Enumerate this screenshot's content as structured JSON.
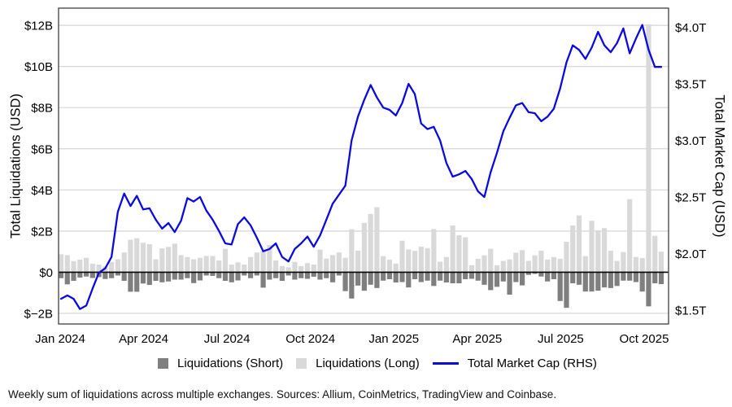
{
  "caption": "Weekly sum of liquidations across multiple exchanges. Sources: Allium, CoinMetrics, TradingView and Coinbase.",
  "colors": {
    "short_bar": "#7f7f7f",
    "long_bar": "#d9d9d9",
    "line": "#0b0bdb",
    "grid": "#d6d6d6",
    "frame": "#4d4d4d",
    "zero_line": "#000000",
    "text": "#000000"
  },
  "chart_data": {
    "type": "bar",
    "note": "weekly combo chart: two bar series (left axis, $B) + one line series (right axis, $T)",
    "x_unit": "weeks from Jan 2024 to Oct 2025",
    "x_axis": {
      "tick_labels": [
        "Jan 2024",
        "Apr 2024",
        "Jul 2024",
        "Oct 2024",
        "Jan 2025",
        "Apr 2025",
        "Jul 2025",
        "Oct 2025"
      ],
      "tick_month_offsets": [
        0,
        3,
        6,
        9,
        12,
        15,
        18,
        21
      ]
    },
    "left_axis": {
      "label": "Total Liquidations (USD)",
      "tick_values": [
        -2,
        0,
        2,
        4,
        6,
        8,
        10,
        12
      ],
      "tick_labels": [
        "$−2B",
        "$0",
        "$2B",
        "$4B",
        "$6B",
        "$8B",
        "$10B",
        "$12B"
      ],
      "range": [
        -2.52,
        12.83
      ]
    },
    "right_axis": {
      "label": "Total Market Cap (USD)",
      "tick_values": [
        1.5,
        2.0,
        2.5,
        3.0,
        3.5,
        4.0
      ],
      "tick_labels": [
        "$1.5T",
        "$2.0T",
        "$2.5T",
        "$3.0T",
        "$3.5T",
        "$4.0T"
      ],
      "range": [
        1.38,
        4.17
      ]
    },
    "legend_position": "bottom",
    "grid": "horizontal-left-axis-only",
    "series": [
      {
        "name": "Liquidations (Short)",
        "kind": "bar",
        "axis": "left",
        "color": "#7f7f7f",
        "values": [
          -0.29,
          -0.59,
          -0.42,
          -0.26,
          -0.21,
          -0.28,
          -0.24,
          -0.33,
          -0.29,
          -0.16,
          -0.42,
          -0.95,
          -0.95,
          -0.55,
          -0.62,
          -0.42,
          -0.49,
          -0.45,
          -0.36,
          -0.36,
          -0.29,
          -0.53,
          -0.4,
          -0.16,
          -0.18,
          -0.29,
          -0.42,
          -0.49,
          -0.4,
          -0.16,
          -0.29,
          -0.16,
          -0.75,
          -0.36,
          -0.29,
          -0.42,
          -0.16,
          -0.36,
          -0.29,
          -0.32,
          -0.22,
          -0.36,
          -0.29,
          -0.49,
          -0.16,
          -0.92,
          -1.28,
          -0.65,
          -0.9,
          -0.61,
          -0.77,
          -0.41,
          -0.34,
          -0.5,
          -0.48,
          -0.74,
          -0.34,
          -0.48,
          -0.41,
          -0.67,
          -0.41,
          -0.5,
          -0.54,
          -0.54,
          -0.34,
          -0.32,
          -0.41,
          -0.61,
          -0.87,
          -0.71,
          -0.45,
          -1.09,
          -0.48,
          -0.64,
          -0.13,
          -0.08,
          -0.21,
          -0.45,
          -0.34,
          -1.4,
          -1.73,
          -0.54,
          -0.61,
          -0.94,
          -0.94,
          -0.9,
          -0.74,
          -0.77,
          -0.67,
          -0.41,
          -0.41,
          -0.48,
          -0.94,
          -1.66,
          -0.54,
          -0.58
        ]
      },
      {
        "name": "Liquidations (Long)",
        "kind": "bar",
        "axis": "left",
        "color": "#d9d9d9",
        "values": [
          0.87,
          0.83,
          0.54,
          0.61,
          0.7,
          0.41,
          0.37,
          0.28,
          0.5,
          0.63,
          0.96,
          1.58,
          1.65,
          1.43,
          1.36,
          0.63,
          1.16,
          1.23,
          1.39,
          0.83,
          0.74,
          0.63,
          0.7,
          0.79,
          0.79,
          0.57,
          1.14,
          0.37,
          0.48,
          0.37,
          0.74,
          0.96,
          1.03,
          1.32,
          0.57,
          0.3,
          0.24,
          0.5,
          0.3,
          0.44,
          0.37,
          1.1,
          0.66,
          0.83,
          0.96,
          0.7,
          2.09,
          1.05,
          2.4,
          2.83,
          3.16,
          0.78,
          0.61,
          0.42,
          1.53,
          1.11,
          1.04,
          1.24,
          1.17,
          2.1,
          0.51,
          0.74,
          2.27,
          1.8,
          1.7,
          0.34,
          0.65,
          0.82,
          1.14,
          0.34,
          0.55,
          0.62,
          0.95,
          1.07,
          0.55,
          0.82,
          1.04,
          0.61,
          0.74,
          0.65,
          1.48,
          2.27,
          2.76,
          0.78,
          2.5,
          2.03,
          2.14,
          1.04,
          0.55,
          0.98,
          3.55,
          0.74,
          0.69,
          12.05,
          1.77,
          1.0
        ]
      },
      {
        "name": "Total Market Cap (RHS)",
        "kind": "line",
        "axis": "right",
        "color": "#0b0bdb",
        "values": [
          1.6,
          1.63,
          1.6,
          1.51,
          1.54,
          1.69,
          1.83,
          1.87,
          1.97,
          2.37,
          2.53,
          2.42,
          2.51,
          2.39,
          2.4,
          2.3,
          2.22,
          2.27,
          2.19,
          2.29,
          2.49,
          2.46,
          2.5,
          2.38,
          2.3,
          2.2,
          2.09,
          2.08,
          2.26,
          2.32,
          2.25,
          2.14,
          2.02,
          2.04,
          2.09,
          1.97,
          1.93,
          2.04,
          2.09,
          2.15,
          2.06,
          2.16,
          2.3,
          2.44,
          2.52,
          2.6,
          3.0,
          3.21,
          3.36,
          3.49,
          3.38,
          3.29,
          3.27,
          3.22,
          3.33,
          3.5,
          3.41,
          3.15,
          3.1,
          3.12,
          3.0,
          2.8,
          2.68,
          2.7,
          2.73,
          2.66,
          2.55,
          2.5,
          2.72,
          2.89,
          3.08,
          3.2,
          3.31,
          3.33,
          3.25,
          3.24,
          3.17,
          3.21,
          3.28,
          3.46,
          3.69,
          3.84,
          3.8,
          3.72,
          3.82,
          3.96,
          3.84,
          3.78,
          3.86,
          3.99,
          3.77,
          3.9,
          4.02,
          3.8,
          3.65,
          3.65
        ]
      }
    ]
  },
  "legend": {
    "short_label": "Liquidations (Short)",
    "long_label": "Liquidations (Long)",
    "line_label": "Total Market Cap (RHS)"
  }
}
